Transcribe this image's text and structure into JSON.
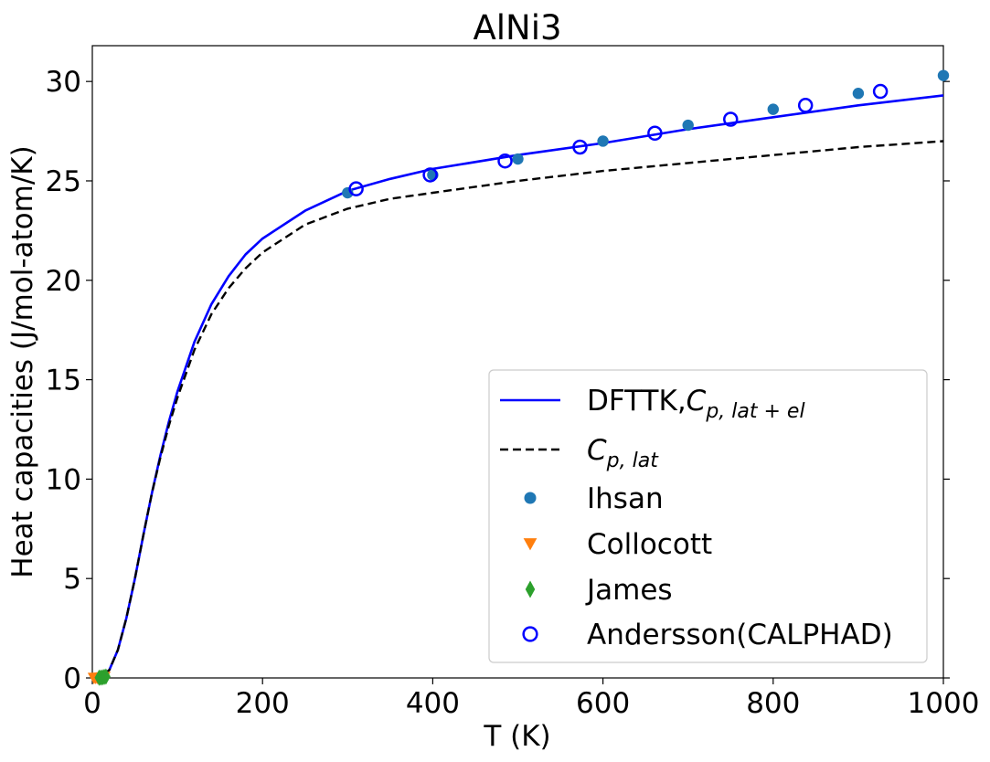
{
  "chart_data": {
    "type": "line",
    "title": "AlNi3",
    "xlabel": "T (K)",
    "ylabel": "Heat capacities (J/mol-atom/K)",
    "xlim": [
      0,
      1000
    ],
    "ylim": [
      0,
      31.8
    ],
    "xticks": [
      "0",
      "200",
      "400",
      "600",
      "800",
      "1000"
    ],
    "yticks": [
      "0",
      "5",
      "10",
      "15",
      "20",
      "25",
      "30"
    ],
    "grid": false,
    "legend_position": "lower-right",
    "series": [
      {
        "name": "DFTTK,",
        "name_math_base": "C",
        "name_math_sub": "p, lat + el",
        "style": "solid-line",
        "color": "#0000ff",
        "x": [
          0,
          10,
          20,
          30,
          40,
          50,
          60,
          70,
          80,
          90,
          100,
          120,
          140,
          160,
          180,
          200,
          250,
          300,
          350,
          400,
          500,
          600,
          700,
          800,
          900,
          1000
        ],
        "y": [
          0,
          0.05,
          0.4,
          1.4,
          3.0,
          5.0,
          7.2,
          9.3,
          11.2,
          12.9,
          14.4,
          16.9,
          18.8,
          20.2,
          21.3,
          22.1,
          23.5,
          24.5,
          25.1,
          25.6,
          26.3,
          26.9,
          27.6,
          28.2,
          28.8,
          29.3
        ]
      },
      {
        "name": "",
        "name_math_base": "C",
        "name_math_sub": "p, lat",
        "style": "dashed-line",
        "color": "#000000",
        "x": [
          0,
          10,
          20,
          30,
          40,
          50,
          60,
          70,
          80,
          90,
          100,
          120,
          140,
          160,
          180,
          200,
          250,
          300,
          350,
          400,
          500,
          600,
          700,
          800,
          900,
          1000
        ],
        "y": [
          0,
          0.05,
          0.4,
          1.4,
          3.0,
          5.0,
          7.2,
          9.3,
          11.1,
          12.7,
          14.1,
          16.5,
          18.3,
          19.6,
          20.6,
          21.4,
          22.8,
          23.6,
          24.1,
          24.4,
          25.0,
          25.5,
          25.9,
          26.3,
          26.7,
          27.0
        ]
      },
      {
        "name": "Ihsan",
        "style": "filled-circle",
        "color": "#1f77b4",
        "x": [
          300,
          400,
          500,
          600,
          700,
          800,
          900,
          1000
        ],
        "y": [
          24.4,
          25.3,
          26.1,
          27.0,
          27.8,
          28.6,
          29.4,
          30.3
        ]
      },
      {
        "name": "Collocott",
        "style": "down-triangle",
        "color": "#ff7f0e",
        "x": [
          2,
          4,
          6,
          8,
          10,
          12,
          14
        ],
        "y": [
          0,
          0,
          0,
          0,
          0.02,
          0.03,
          0.05
        ]
      },
      {
        "name": "James",
        "style": "thin-diamond",
        "color": "#2ca02c",
        "x": [
          8,
          10,
          12,
          14,
          16
        ],
        "y": [
          0.01,
          0.02,
          0.03,
          0.05,
          0.07
        ]
      },
      {
        "name": "Andersson(CALPHAD)",
        "style": "open-circle",
        "color": "#0000ff",
        "x": [
          310,
          397,
          485,
          573,
          661,
          750,
          838,
          926
        ],
        "y": [
          24.6,
          25.3,
          26.0,
          26.7,
          27.4,
          28.1,
          28.8,
          29.5
        ]
      }
    ]
  }
}
